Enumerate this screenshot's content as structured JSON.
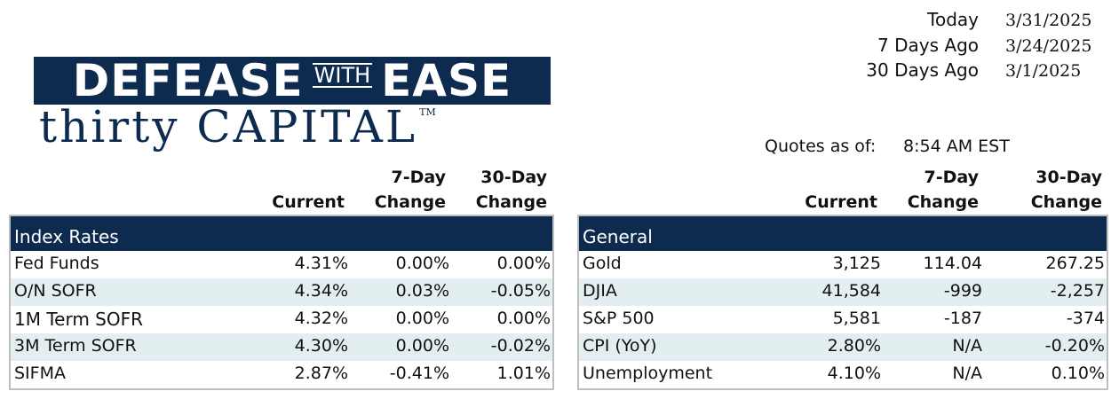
{
  "logo": {
    "line1_left": "DEFEASE",
    "line1_with": "WITH",
    "line1_right": "EASE",
    "line2": "thirty CAPITAL",
    "trademark": "TM",
    "bar_color": "#0d2a4f"
  },
  "dates": [
    {
      "label": "Today",
      "value": "3/31/2025"
    },
    {
      "label": "7 Days Ago",
      "value": "3/24/2025"
    },
    {
      "label": "30 Days Ago",
      "value": "3/1/2025"
    }
  ],
  "quotes": {
    "label": "Quotes as of:",
    "time": "8:54 AM EST"
  },
  "columns": {
    "current": "Current",
    "seven_day_top": "7-Day",
    "seven_day_bottom": "Change",
    "thirty_day_top": "30-Day",
    "thirty_day_bottom": "Change"
  },
  "index_rates": {
    "title": "Index Rates",
    "rows": [
      {
        "name": "Fed Funds",
        "current": "4.31%",
        "d7": "0.00%",
        "d30": "0.00%"
      },
      {
        "name": "O/N SOFR",
        "current": "4.34%",
        "d7": "0.03%",
        "d30": "-0.05%"
      },
      {
        "name": "1M Term SOFR",
        "current": "4.32%",
        "d7": "0.00%",
        "d30": "0.00%"
      },
      {
        "name": "3M Term SOFR",
        "current": "4.30%",
        "d7": "0.00%",
        "d30": "-0.02%"
      },
      {
        "name": "SIFMA",
        "current": "2.87%",
        "d7": "-0.41%",
        "d30": "1.01%"
      }
    ]
  },
  "general": {
    "title": "General",
    "rows": [
      {
        "name": "Gold",
        "current": "3,125",
        "d7": "114.04",
        "d30": "267.25"
      },
      {
        "name": "DJIA",
        "current": "41,584",
        "d7": "-999",
        "d30": "-2,257"
      },
      {
        "name": "S&P 500",
        "current": "5,581",
        "d7": "-187",
        "d30": "-374"
      },
      {
        "name": "CPI (YoY)",
        "current": "2.80%",
        "d7": "N/A",
        "d30": "-0.20%"
      },
      {
        "name": "Unemployment",
        "current": "4.10%",
        "d7": "N/A",
        "d30": "0.10%"
      }
    ]
  },
  "colors": {
    "header_bg": "#0d2a4f",
    "alt_row": "#e3eef0",
    "border": "#bfbfbf"
  }
}
